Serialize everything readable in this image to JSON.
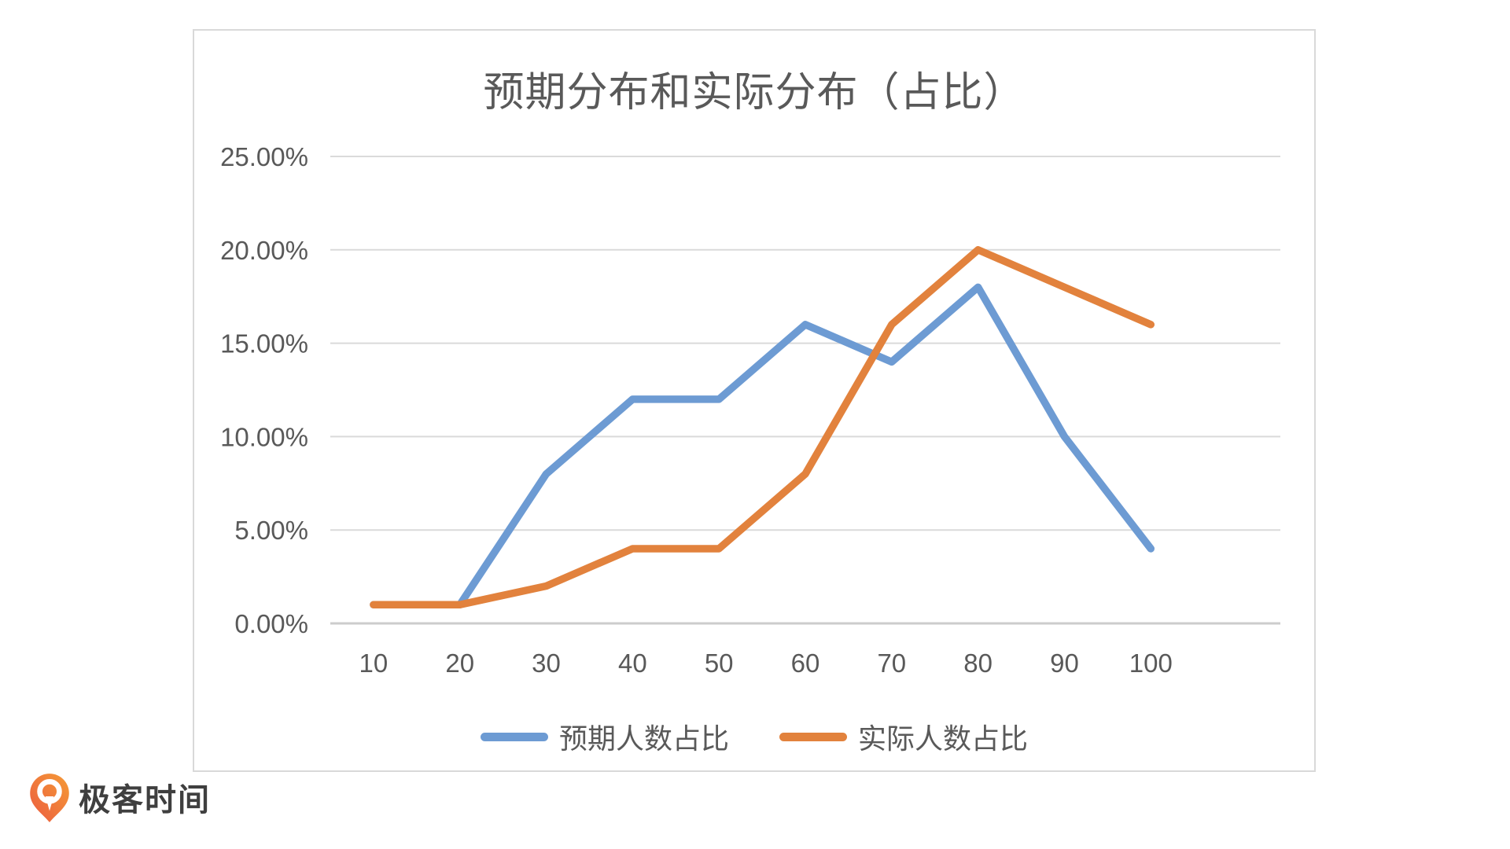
{
  "title": "预期分布和实际分布（占比）",
  "logo": {
    "text": "极客时间",
    "brand_color": "#F0703F"
  },
  "chart_data": {
    "type": "line",
    "title": "预期分布和实际分布（占比）",
    "categories": [
      "10",
      "20",
      "30",
      "40",
      "50",
      "60",
      "70",
      "80",
      "90",
      "100"
    ],
    "unit": "%",
    "series": [
      {
        "name": "预期人数占比",
        "color": "#6D9BD3",
        "values": [
          1,
          1,
          8,
          12,
          12,
          16,
          14,
          18,
          10,
          4
        ]
      },
      {
        "name": "实际人数占比",
        "color": "#E2823D",
        "values": [
          1,
          1,
          2,
          4,
          4,
          8,
          16,
          20,
          18,
          16
        ]
      }
    ],
    "y_ticks": [
      {
        "value": 25,
        "label": "25.00%"
      },
      {
        "value": 20,
        "label": "20.00%"
      },
      {
        "value": 15,
        "label": "15.00%"
      },
      {
        "value": 10,
        "label": "10.00%"
      },
      {
        "value": 5,
        "label": "5.00%"
      },
      {
        "value": 0,
        "label": "0.00%"
      }
    ],
    "ylim": [
      0,
      25
    ],
    "grid": true,
    "legend_position": "bottom",
    "colors": {
      "gridline": "#DADADA",
      "axis_line": "#CCCCCC",
      "tick_text": "#595959"
    }
  }
}
